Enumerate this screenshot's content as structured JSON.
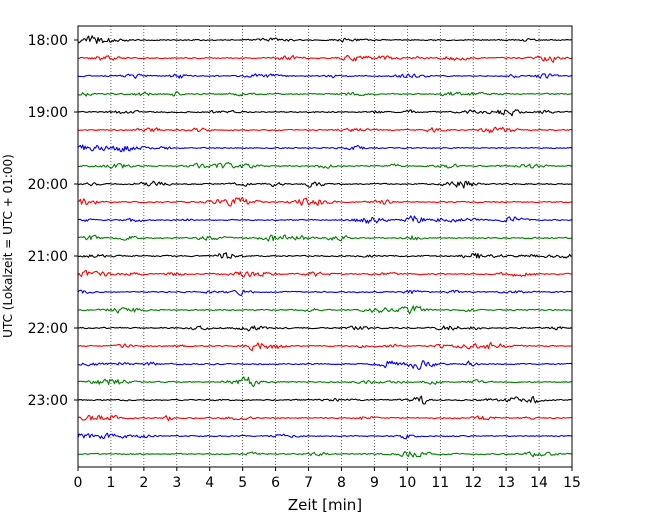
{
  "chart_data": {
    "type": "line",
    "title": "",
    "xlabel": "Zeit  [min]",
    "ylabel": "UTC (Lokalzeit = UTC + 01:00)",
    "xlim": [
      0,
      15
    ],
    "x_ticks": [
      0,
      1,
      2,
      3,
      4,
      5,
      6,
      7,
      8,
      9,
      10,
      11,
      12,
      13,
      14,
      15
    ],
    "y_tick_labels": [
      "18:00",
      "19:00",
      "20:00",
      "21:00",
      "22:00",
      "23:00"
    ],
    "trace_interval_minutes": 15,
    "start_time": "18:00",
    "trace_count": 24,
    "trace_colors": [
      "#000000",
      "#ff0000",
      "#0000ff",
      "#007f00"
    ],
    "vertical_grid": "dotted",
    "series": [
      {
        "start": "18:00",
        "color": "#000000"
      },
      {
        "start": "18:15",
        "color": "#ff0000"
      },
      {
        "start": "18:30",
        "color": "#0000ff"
      },
      {
        "start": "18:45",
        "color": "#007f00"
      },
      {
        "start": "19:00",
        "color": "#000000"
      },
      {
        "start": "19:15",
        "color": "#ff0000"
      },
      {
        "start": "19:30",
        "color": "#0000ff"
      },
      {
        "start": "19:45",
        "color": "#007f00"
      },
      {
        "start": "20:00",
        "color": "#000000"
      },
      {
        "start": "20:15",
        "color": "#ff0000"
      },
      {
        "start": "20:30",
        "color": "#0000ff"
      },
      {
        "start": "20:45",
        "color": "#007f00"
      },
      {
        "start": "21:00",
        "color": "#000000"
      },
      {
        "start": "21:15",
        "color": "#ff0000"
      },
      {
        "start": "21:30",
        "color": "#0000ff"
      },
      {
        "start": "21:45",
        "color": "#007f00"
      },
      {
        "start": "22:00",
        "color": "#000000"
      },
      {
        "start": "22:15",
        "color": "#ff0000"
      },
      {
        "start": "22:30",
        "color": "#0000ff"
      },
      {
        "start": "22:45",
        "color": "#007f00"
      },
      {
        "start": "23:00",
        "color": "#000000"
      },
      {
        "start": "23:15",
        "color": "#ff0000"
      },
      {
        "start": "23:30",
        "color": "#0000ff"
      },
      {
        "start": "23:45",
        "color": "#007f00"
      }
    ]
  }
}
